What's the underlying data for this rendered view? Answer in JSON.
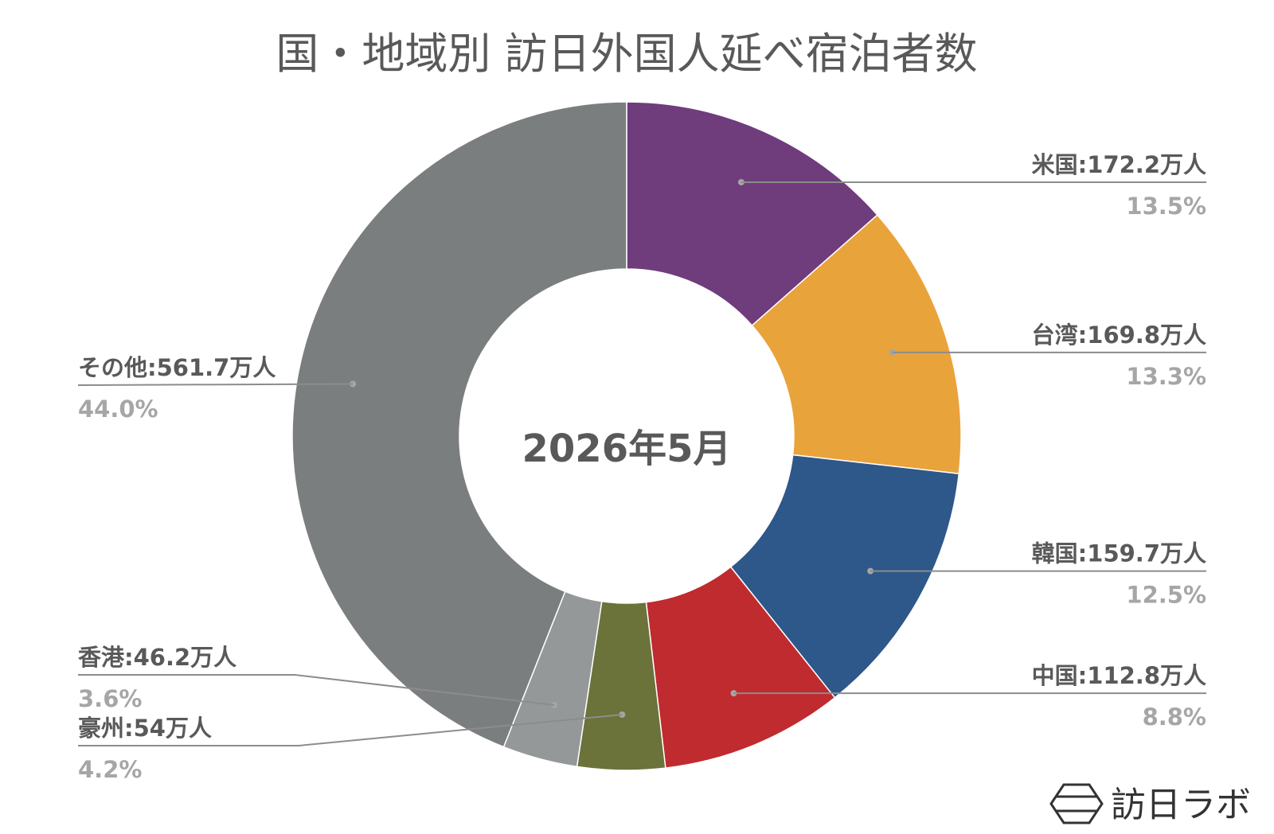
{
  "chart_data": {
    "type": "pie",
    "title": "国・地域別 訪日外国人延べ宿泊者数",
    "center_label": "2026年5月",
    "slices": [
      {
        "name": "米国",
        "value": 172.2,
        "value_label": "172.2万人",
        "percent": "13.5%",
        "color": "#6f3c7c"
      },
      {
        "name": "台湾",
        "value": 169.8,
        "value_label": "169.8万人",
        "percent": "13.3%",
        "color": "#e9a33b"
      },
      {
        "name": "韓国",
        "value": 159.7,
        "value_label": "159.7万人",
        "percent": "12.5%",
        "color": "#2e578a"
      },
      {
        "name": "中国",
        "value": 112.8,
        "value_label": "112.8万人",
        "percent": "8.8%",
        "color": "#bf2b2f"
      },
      {
        "name": "豪州",
        "value": 54,
        "value_label": "54万人",
        "percent": "4.2%",
        "color": "#6b723a"
      },
      {
        "name": "香港",
        "value": 46.2,
        "value_label": "46.2万人",
        "percent": "3.6%",
        "color": "#959899"
      },
      {
        "name": "その他",
        "value": 561.7,
        "value_label": "561.7万人",
        "percent": "44.0%",
        "color": "#7b7e7f"
      }
    ]
  },
  "logo": {
    "text": "訪日ラボ"
  }
}
